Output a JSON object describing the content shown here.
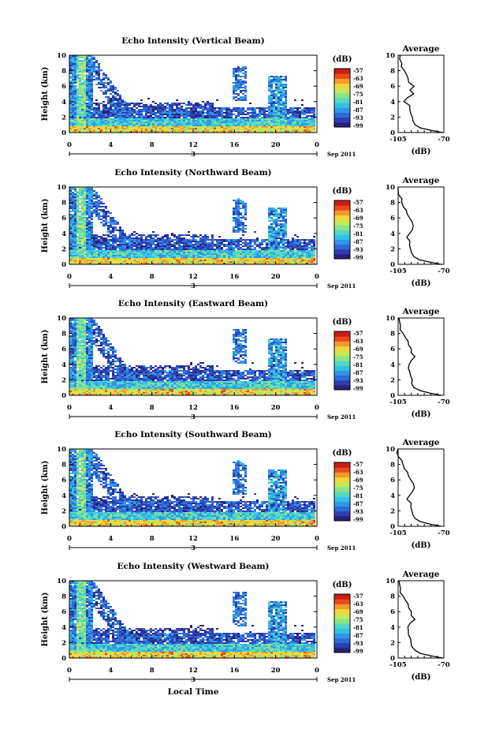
{
  "colors": {
    "colormap": [
      "#2a1f7a",
      "#2d3fb0",
      "#2f6ad8",
      "#2f97e8",
      "#33c2e8",
      "#55d9c0",
      "#8be38a",
      "#c8e85a",
      "#f2d53c",
      "#f59a2c",
      "#e84a1e",
      "#c81e14"
    ],
    "axis": "#000000",
    "background": "#ffffff"
  },
  "figure": {
    "xlabel_bottom": "Local Time",
    "date_day": "3",
    "date_suffix": "Sep 2011",
    "colorbar_unit": "(dB)",
    "colorbar_ticks": [
      "-57",
      "-63",
      "-69",
      "-75",
      "-81",
      "-87",
      "-93",
      "-99"
    ],
    "profile_title": "Average",
    "profile_xlabel": "(dB)"
  },
  "chart_data": [
    {
      "type": "heatmap",
      "title": "Echo Intensity (Vertical Beam)",
      "ylabel": "Height (km)",
      "x_ticks": [
        "0",
        "4",
        "8",
        "12",
        "16",
        "20",
        "0"
      ],
      "x_range_hours": [
        0,
        24
      ],
      "ylim": [
        0,
        10
      ],
      "y_ticks": [
        "0",
        "2",
        "4",
        "6",
        "8",
        "10"
      ],
      "color_range_db": [
        -99,
        -57
      ],
      "profile": {
        "title": "Average",
        "xlim": [
          -105,
          -70
        ],
        "x_ticks": [
          "-105",
          "-70"
        ],
        "height_km": [
          0,
          0.3,
          0.6,
          1.0,
          1.5,
          2.0,
          2.5,
          3.0,
          3.5,
          4.0,
          4.5,
          5.0,
          5.5,
          6.0,
          6.5,
          7.0,
          7.5,
          8.0,
          8.5,
          9.0,
          9.5,
          10
        ],
        "avg_db": [
          -71,
          -80,
          -88,
          -92,
          -94,
          -95,
          -96,
          -96,
          -97,
          -100,
          -97,
          -94,
          -95,
          -93,
          -97,
          -98,
          -99,
          -100,
          -102,
          -103,
          -104,
          -104
        ]
      }
    },
    {
      "type": "heatmap",
      "title": "Echo Intensity (Northward Beam)",
      "ylabel": "Height (km)",
      "x_ticks": [
        "0",
        "4",
        "8",
        "12",
        "16",
        "20",
        "0"
      ],
      "x_range_hours": [
        0,
        24
      ],
      "ylim": [
        0,
        10
      ],
      "y_ticks": [
        "0",
        "2",
        "4",
        "6",
        "8",
        "10"
      ],
      "color_range_db": [
        -99,
        -57
      ],
      "profile": {
        "title": "Average",
        "xlim": [
          -105,
          -70
        ],
        "x_ticks": [
          "-105",
          "-70"
        ],
        "height_km": [
          0,
          0.3,
          0.6,
          1.0,
          1.5,
          2.0,
          2.5,
          3.0,
          3.5,
          4.0,
          4.5,
          5.0,
          5.5,
          6.0,
          6.5,
          7.0,
          7.5,
          8.0,
          8.5,
          9.0,
          9.5,
          10
        ],
        "avg_db": [
          -72,
          -81,
          -89,
          -93,
          -95,
          -96,
          -97,
          -97,
          -98,
          -97,
          -95,
          -94,
          -95,
          -96,
          -98,
          -99,
          -101,
          -102,
          -103,
          -104,
          -104,
          -105
        ]
      }
    },
    {
      "type": "heatmap",
      "title": "Echo Intensity (Eastward Beam)",
      "ylabel": "Height (km)",
      "x_ticks": [
        "0",
        "4",
        "8",
        "12",
        "16",
        "20",
        "0"
      ],
      "x_range_hours": [
        0,
        24
      ],
      "ylim": [
        0,
        10
      ],
      "y_ticks": [
        "0",
        "2",
        "4",
        "6",
        "8",
        "10"
      ],
      "color_range_db": [
        -99,
        -57
      ],
      "profile": {
        "title": "Average",
        "xlim": [
          -105,
          -70
        ],
        "x_ticks": [
          "-105",
          "-70"
        ],
        "height_km": [
          0,
          0.3,
          0.6,
          1.0,
          1.5,
          2.0,
          2.5,
          3.0,
          3.5,
          4.0,
          4.5,
          5.0,
          5.5,
          6.0,
          6.5,
          7.0,
          7.5,
          8.0,
          8.5,
          9.0,
          9.5,
          10
        ],
        "avg_db": [
          -72,
          -81,
          -88,
          -93,
          -95,
          -95,
          -96,
          -96,
          -98,
          -96,
          -94,
          -93,
          -94,
          -95,
          -97,
          -98,
          -100,
          -101,
          -103,
          -104,
          -104,
          -105
        ]
      }
    },
    {
      "type": "heatmap",
      "title": "Echo Intensity (Southward Beam)",
      "ylabel": "Height (km)",
      "x_ticks": [
        "0",
        "4",
        "8",
        "12",
        "16",
        "20",
        "0"
      ],
      "x_range_hours": [
        0,
        24
      ],
      "ylim": [
        0,
        10
      ],
      "y_ticks": [
        "0",
        "2",
        "4",
        "6",
        "8",
        "10"
      ],
      "color_range_db": [
        -99,
        -57
      ],
      "profile": {
        "title": "Average",
        "xlim": [
          -105,
          -70
        ],
        "x_ticks": [
          "-105",
          "-70"
        ],
        "height_km": [
          0,
          0.3,
          0.6,
          1.0,
          1.5,
          2.0,
          2.5,
          3.0,
          3.5,
          4.0,
          4.5,
          5.0,
          5.5,
          6.0,
          6.5,
          7.0,
          7.5,
          8.0,
          8.5,
          9.0,
          9.5,
          10
        ],
        "avg_db": [
          -72,
          -81,
          -88,
          -92,
          -94,
          -95,
          -96,
          -96,
          -98,
          -97,
          -95,
          -93,
          -94,
          -95,
          -97,
          -98,
          -100,
          -101,
          -103,
          -104,
          -105,
          -105
        ]
      }
    },
    {
      "type": "heatmap",
      "title": "Echo Intensity (Westward Beam)",
      "ylabel": "Height (km)",
      "x_ticks": [
        "0",
        "4",
        "8",
        "12",
        "16",
        "20",
        "0"
      ],
      "x_range_hours": [
        0,
        24
      ],
      "ylim": [
        0,
        10
      ],
      "y_ticks": [
        "0",
        "2",
        "4",
        "6",
        "8",
        "10"
      ],
      "color_range_db": [
        -99,
        -57
      ],
      "profile": {
        "title": "Average",
        "xlim": [
          -105,
          -70
        ],
        "x_ticks": [
          "-105",
          "-70"
        ],
        "height_km": [
          0,
          0.3,
          0.6,
          1.0,
          1.5,
          2.0,
          2.5,
          3.0,
          3.5,
          4.0,
          4.5,
          5.0,
          5.5,
          6.0,
          6.5,
          7.0,
          7.5,
          8.0,
          8.5,
          9.0,
          9.5,
          10
        ],
        "avg_db": [
          -71,
          -80,
          -88,
          -92,
          -95,
          -96,
          -96,
          -97,
          -98,
          -97,
          -95,
          -93,
          -94,
          -95,
          -97,
          -98,
          -100,
          -101,
          -103,
          -104,
          -104,
          -105
        ]
      }
    }
  ]
}
